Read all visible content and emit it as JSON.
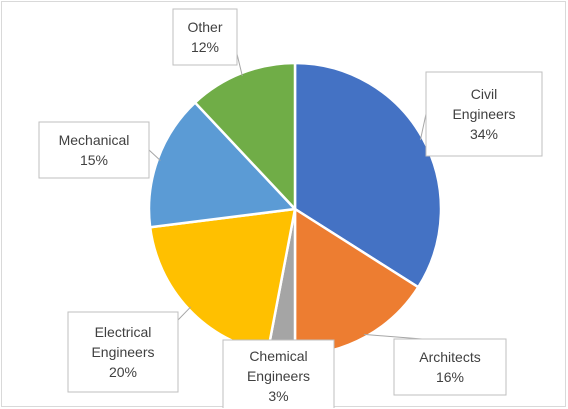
{
  "chart_data": {
    "type": "pie",
    "title": "",
    "legend": "none",
    "slices": [
      {
        "label": "Civil Engineers",
        "value": 34,
        "value_label": "34%",
        "color": "#4472C4"
      },
      {
        "label": "Architects",
        "value": 16,
        "value_label": "16%",
        "color": "#ED7D31"
      },
      {
        "label": "Chemical Engineers",
        "value": 3,
        "value_label": "3%",
        "color": "#A5A5A5"
      },
      {
        "label": "Electrical Engineers",
        "value": 20,
        "value_label": "20%",
        "color": "#FFC000"
      },
      {
        "label": "Mechanical",
        "value": 15,
        "value_label": "15%",
        "color": "#5B9BD5"
      },
      {
        "label": "Other",
        "value": 12,
        "value_label": "12%",
        "color": "#70AD47"
      }
    ]
  }
}
